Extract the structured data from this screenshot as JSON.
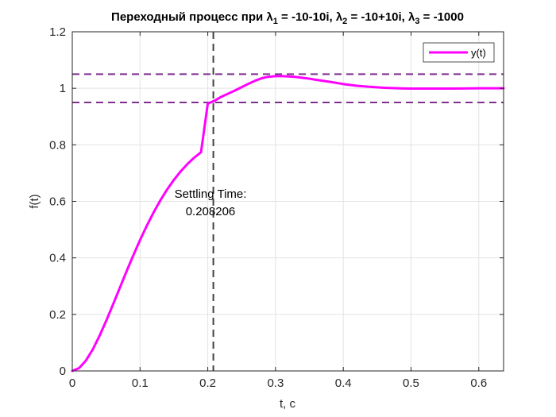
{
  "chart_data": {
    "type": "line",
    "title": {
      "prefix": "Переходный процесс при λ",
      "sub1": "1",
      "mid1": " = -10-10i, λ",
      "sub2": "2",
      "mid2": " = -10+10i, λ",
      "sub3": "3",
      "suffix": " = -1000"
    },
    "xlabel": "t, c",
    "ylabel": "f(t)",
    "xlim": [
      0,
      0.6366
    ],
    "ylim": [
      0,
      1.2
    ],
    "xticks": [
      "0",
      "0.1",
      "0.2",
      "0.3",
      "0.4",
      "0.5",
      "0.6"
    ],
    "yticks": [
      "0",
      "0.2",
      "0.4",
      "0.6",
      "0.8",
      "1",
      "1.2"
    ],
    "grid": true,
    "legend_position": "top-right",
    "series": [
      {
        "name": "y(t)",
        "color": "#ff00ff",
        "x": [
          0,
          0.01,
          0.02,
          0.03,
          0.04,
          0.05,
          0.06,
          0.07,
          0.08,
          0.09,
          0.1,
          0.11,
          0.12,
          0.13,
          0.14,
          0.15,
          0.16,
          0.17,
          0.18,
          0.19,
          0.2,
          0.21,
          0.22,
          0.23,
          0.24,
          0.25,
          0.26,
          0.27,
          0.28,
          0.29,
          0.3,
          0.31,
          0.32,
          0.33,
          0.34,
          0.35,
          0.36,
          0.38,
          0.4,
          0.42,
          0.44,
          0.46,
          0.48,
          0.5,
          0.52,
          0.54,
          0.56,
          0.58,
          0.6,
          0.62,
          0.6366
        ],
        "y": [
          0,
          0.0099,
          0.0363,
          0.0752,
          0.123,
          0.177,
          0.2344,
          0.2932,
          0.3517,
          0.4086,
          0.463,
          0.5138,
          0.5608,
          0.6036,
          0.642,
          0.6762,
          0.7062,
          0.7322,
          0.7546,
          0.7736,
          0.946,
          0.956,
          0.97,
          0.981,
          0.992,
          1.004,
          1.016,
          1.027,
          1.036,
          1.041,
          1.043,
          1.043,
          1.042,
          1.04,
          1.037,
          1.034,
          1.03,
          1.023,
          1.015,
          1.009,
          1.005,
          1.002,
          1.0,
          0.999,
          0.999,
          0.999,
          0.999,
          0.9995,
          1.0,
          1.0,
          1.0
        ]
      }
    ],
    "reference_lines": {
      "upper_band": 1.05,
      "lower_band": 0.95,
      "band_color": "#7e2f8e",
      "settling_time": 0.208206,
      "settling_color": "#404040"
    },
    "annotation": {
      "line1": "Settling Time:",
      "line2": "0.208206",
      "x": 0.208206,
      "y": 0.62
    }
  }
}
